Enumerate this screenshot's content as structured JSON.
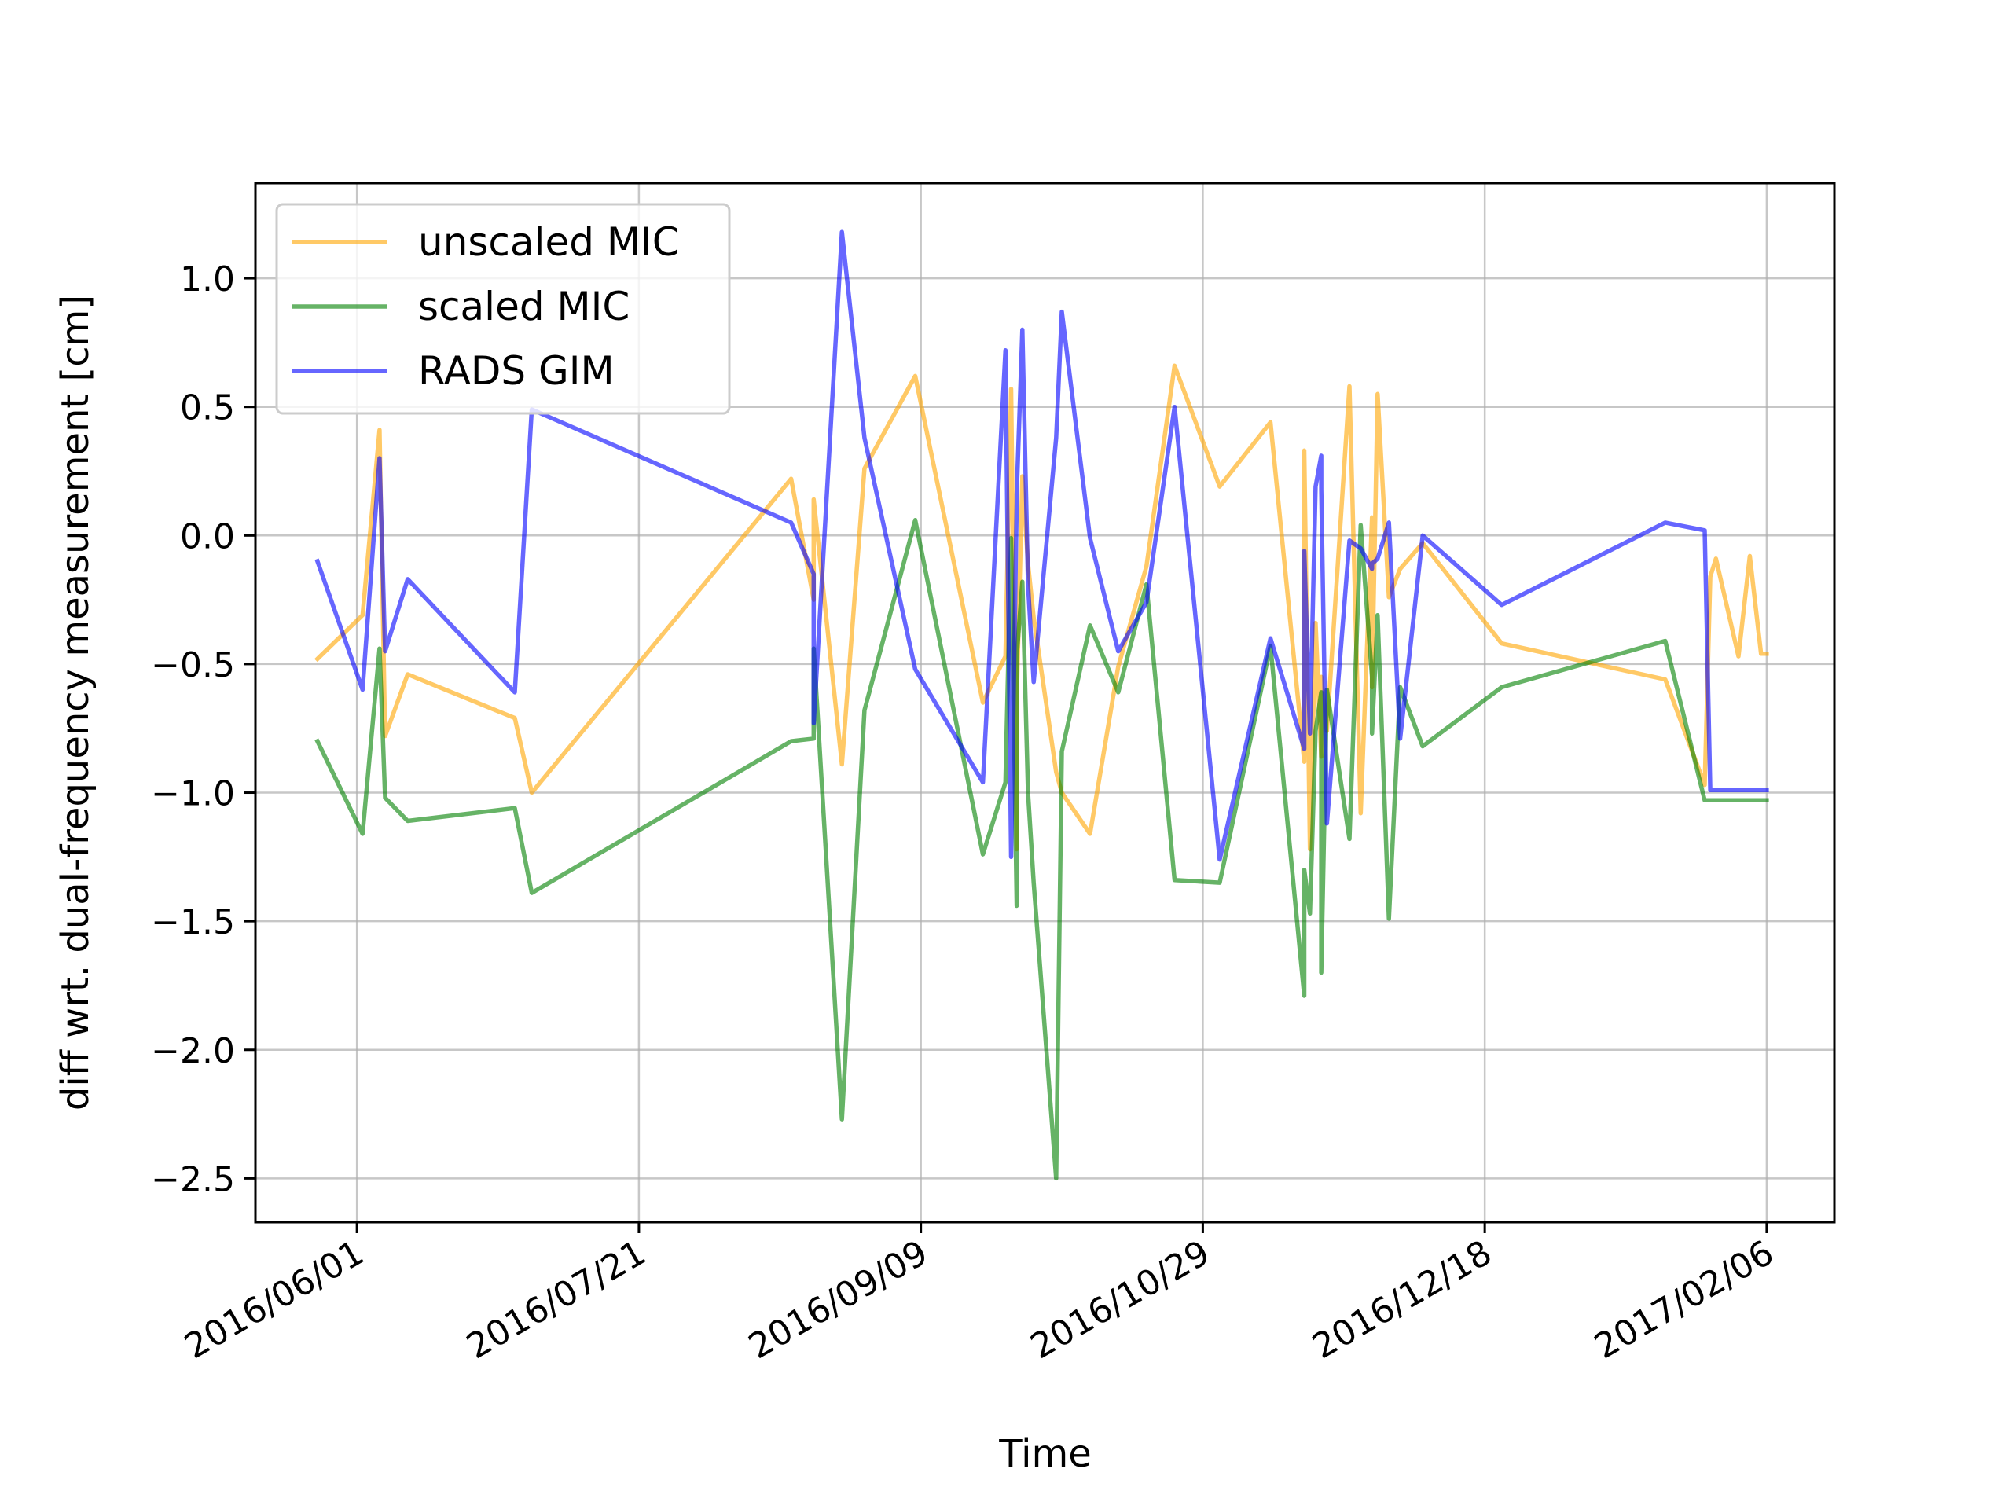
{
  "chart_data": {
    "type": "line",
    "title": "",
    "xlabel": "Time",
    "ylabel": "diff wrt. dual-frequency measurement [cm]",
    "x_axis_type": "date",
    "xlim": [
      "2016-05-14",
      "2017-02-18"
    ],
    "ylim": [
      -2.67,
      1.37
    ],
    "x_ticks": [
      "2016-06-01",
      "2016-07-21",
      "2016-09-09",
      "2016-10-29",
      "2016-12-18",
      "2017-02-06"
    ],
    "x_tick_labels": [
      "2016/06/01",
      "2016/07/21",
      "2016/09/09",
      "2016/10/29",
      "2016/12/18",
      "2017/02/06"
    ],
    "y_ticks": [
      1.0,
      0.5,
      0.0,
      -0.5,
      -1.0,
      -1.5,
      -2.0,
      -2.5
    ],
    "y_tick_labels": [
      "1.0",
      "0.5",
      "0.0",
      "−0.5",
      "−1.0",
      "−1.5",
      "−2.0",
      "−2.5"
    ],
    "grid": true,
    "legend_position": "top-left",
    "x": [
      "2016-05-25",
      "2016-06-02",
      "2016-06-05",
      "2016-06-06",
      "2016-06-10",
      "2016-06-29",
      "2016-07-02",
      "2016-08-17",
      "2016-08-21",
      "2016-08-21",
      "2016-08-26",
      "2016-08-30",
      "2016-09-08",
      "2016-09-20",
      "2016-09-24",
      "2016-09-25",
      "2016-09-26",
      "2016-09-26",
      "2016-09-27",
      "2016-09-28",
      "2016-09-29",
      "2016-10-03",
      "2016-10-04",
      "2016-10-09",
      "2016-10-14",
      "2016-10-19",
      "2016-10-24",
      "2016-11-01",
      "2016-11-10",
      "2016-11-16",
      "2016-11-16",
      "2016-11-17",
      "2016-11-18",
      "2016-11-19",
      "2016-11-19",
      "2016-11-20",
      "2016-11-24",
      "2016-11-26",
      "2016-11-28",
      "2016-11-28",
      "2016-11-29",
      "2016-12-01",
      "2016-12-03",
      "2016-12-07",
      "2016-12-21",
      "2017-01-19",
      "2017-01-26",
      "2017-01-27",
      "2017-01-28",
      "2017-02-01",
      "2017-02-03",
      "2017-02-05",
      "2017-02-06"
    ],
    "series": [
      {
        "name": "unscaled MIC",
        "color": "#ffa500",
        "values": [
          -0.48,
          -0.31,
          0.41,
          -0.78,
          -0.54,
          -0.71,
          -1.0,
          0.22,
          -0.25,
          0.14,
          -0.89,
          0.26,
          0.62,
          -0.65,
          -0.47,
          0.57,
          -1.22,
          -0.64,
          0.23,
          -0.11,
          -0.32,
          -0.92,
          -1.0,
          -1.16,
          -0.51,
          -0.12,
          0.66,
          0.19,
          0.44,
          -0.88,
          0.33,
          -1.22,
          -0.34,
          -0.86,
          -0.55,
          -0.76,
          0.58,
          -1.08,
          0.07,
          -0.59,
          0.55,
          -0.24,
          -0.13,
          -0.03,
          -0.42,
          -0.56,
          -0.97,
          -0.16,
          -0.09,
          -0.47,
          -0.08,
          -0.46,
          -0.46
        ]
      },
      {
        "name": "scaled MIC",
        "color": "#008000",
        "values": [
          -0.8,
          -1.16,
          -0.44,
          -1.02,
          -1.11,
          -1.06,
          -1.39,
          -0.8,
          -0.79,
          -0.44,
          -2.27,
          -0.68,
          0.06,
          -1.24,
          -0.96,
          -0.01,
          -1.44,
          -0.47,
          -0.18,
          -1.0,
          -1.35,
          -2.5,
          -0.84,
          -0.35,
          -0.61,
          -0.19,
          -1.34,
          -1.35,
          -0.43,
          -1.79,
          -1.3,
          -1.47,
          -0.76,
          -0.61,
          -1.7,
          -0.6,
          -1.18,
          0.04,
          -0.55,
          -0.77,
          -0.31,
          -1.49,
          -0.59,
          -0.82,
          -0.59,
          -0.41,
          -1.03,
          -1.03,
          -1.03,
          -1.03,
          -1.03,
          -1.03,
          -1.03
        ]
      },
      {
        "name": "RADS GIM",
        "color": "#0000ff",
        "values": [
          -0.1,
          -0.6,
          0.3,
          -0.45,
          -0.17,
          -0.61,
          0.49,
          0.05,
          -0.15,
          -0.73,
          1.18,
          0.38,
          -0.52,
          -0.96,
          0.72,
          -1.25,
          0.13,
          0.16,
          0.8,
          -0.19,
          -0.57,
          0.38,
          0.87,
          -0.01,
          -0.45,
          -0.26,
          0.5,
          -1.26,
          -0.4,
          -0.83,
          -0.06,
          -0.77,
          0.19,
          0.31,
          0.18,
          -1.12,
          -0.02,
          -0.05,
          -0.13,
          -0.11,
          -0.09,
          0.05,
          -0.79,
          0.0,
          -0.27,
          0.05,
          0.02,
          -0.99,
          -0.99,
          -0.99,
          -0.99,
          -0.99,
          -0.99
        ]
      }
    ]
  }
}
